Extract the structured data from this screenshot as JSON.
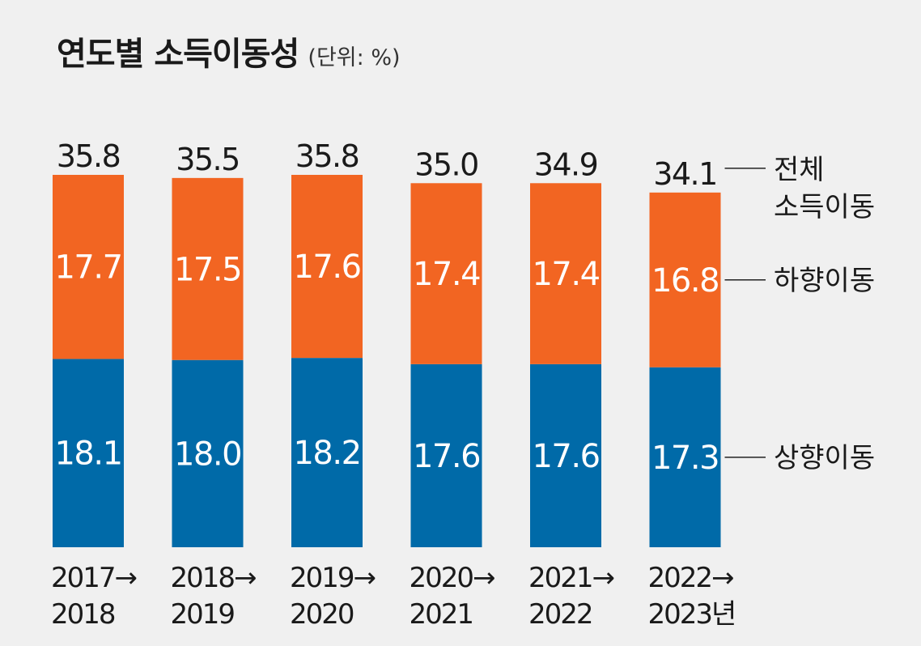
{
  "title": "연도별 소득이동성",
  "unit": "(단위: %)",
  "colors": {
    "upward": "#006aa8",
    "downward": "#f26522",
    "text": "#1a1a1a",
    "bar_label": "#ffffff",
    "leader": "#222222",
    "background": "#f0f0f0"
  },
  "chart_data": {
    "type": "bar",
    "stacked": true,
    "categories": [
      [
        "2017→",
        "2018"
      ],
      [
        "2018→",
        "2019"
      ],
      [
        "2019→",
        "2020"
      ],
      [
        "2020→",
        "2021"
      ],
      [
        "2021→",
        "2022"
      ],
      [
        "2022→",
        "2023년"
      ]
    ],
    "series": [
      {
        "name": "상향이동",
        "values": [
          18.1,
          18.0,
          18.2,
          17.6,
          17.6,
          17.3
        ]
      },
      {
        "name": "하향이동",
        "values": [
          17.7,
          17.5,
          17.6,
          17.4,
          17.4,
          16.8
        ]
      }
    ],
    "totals": [
      35.8,
      35.5,
      35.8,
      35.0,
      34.9,
      34.1
    ],
    "totals_label": [
      "전체",
      "소득이동"
    ],
    "legend_placement": "right",
    "grid": false
  }
}
